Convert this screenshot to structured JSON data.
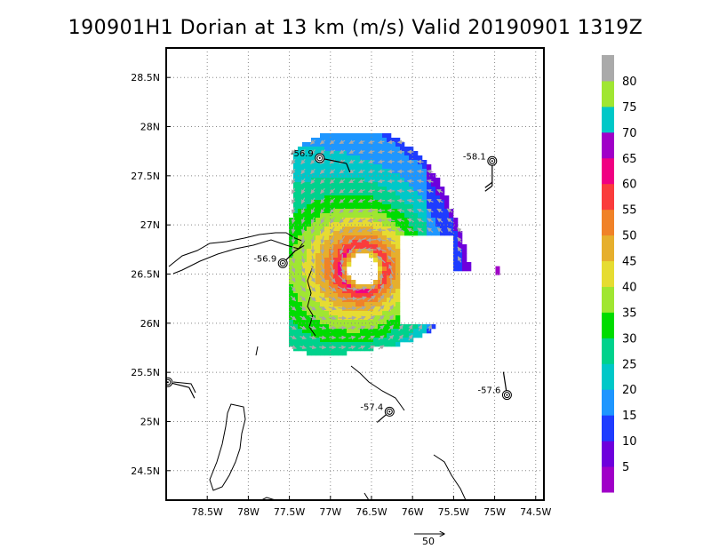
{
  "chart_data": {
    "type": "heatmap",
    "title": "190901H1 Dorian at 13 km (m/s) Valid 20190901  1319Z",
    "xlim": [
      -79.0,
      -74.4
    ],
    "ylim": [
      24.2,
      28.8
    ],
    "x_ticks": [
      {
        "value": -78.5,
        "label": "78.5W"
      },
      {
        "value": -78.0,
        "label": "78W"
      },
      {
        "value": -77.5,
        "label": "77.5W"
      },
      {
        "value": -77.0,
        "label": "77W"
      },
      {
        "value": -76.5,
        "label": "76.5W"
      },
      {
        "value": -76.0,
        "label": "76W"
      },
      {
        "value": -75.5,
        "label": "75.5W"
      },
      {
        "value": -75.0,
        "label": "75W"
      },
      {
        "value": -74.5,
        "label": "74.5W"
      }
    ],
    "y_ticks": [
      {
        "value": 28.5,
        "label": "28.5N"
      },
      {
        "value": 28.0,
        "label": "28N"
      },
      {
        "value": 27.5,
        "label": "27.5N"
      },
      {
        "value": 27.0,
        "label": "27N"
      },
      {
        "value": 26.5,
        "label": "26.5N"
      },
      {
        "value": 26.0,
        "label": "26N"
      },
      {
        "value": 25.5,
        "label": "25.5N"
      },
      {
        "value": 25.0,
        "label": "25N"
      },
      {
        "value": 24.5,
        "label": "24.5N"
      }
    ],
    "grid": true,
    "colorbar": {
      "labels": [
        "5",
        "10",
        "15",
        "20",
        "25",
        "30",
        "35",
        "40",
        "45",
        "50",
        "55",
        "60",
        "65",
        "70",
        "75",
        "80"
      ],
      "colors": [
        "#a000c8",
        "#6e00dc",
        "#1e3cff",
        "#1e96ff",
        "#00c8c8",
        "#00d28c",
        "#00dc00",
        "#a0e632",
        "#e6dc32",
        "#e6af2d",
        "#f08228",
        "#fa3c3c",
        "#f00082",
        "#a000c8",
        "#00c8c8",
        "#a0e632",
        "#aaaaaa"
      ]
    },
    "storm_center": {
      "lon": -76.6,
      "lat": 26.55
    },
    "vector_reference": {
      "label": "50"
    },
    "stations": [
      {
        "label": "-56.9",
        "lon": -77.13,
        "lat": 27.68
      },
      {
        "label": "-58.1",
        "lon": -75.03,
        "lat": 27.65
      },
      {
        "label": "-56.9",
        "lon": -77.58,
        "lat": 26.61
      },
      {
        "label": "-57.4",
        "lon": -76.28,
        "lat": 25.1
      },
      {
        "label": "-57.6",
        "lon": -74.85,
        "lat": 25.27
      },
      {
        "label": "",
        "lon": -78.98,
        "lat": 25.4
      }
    ]
  }
}
